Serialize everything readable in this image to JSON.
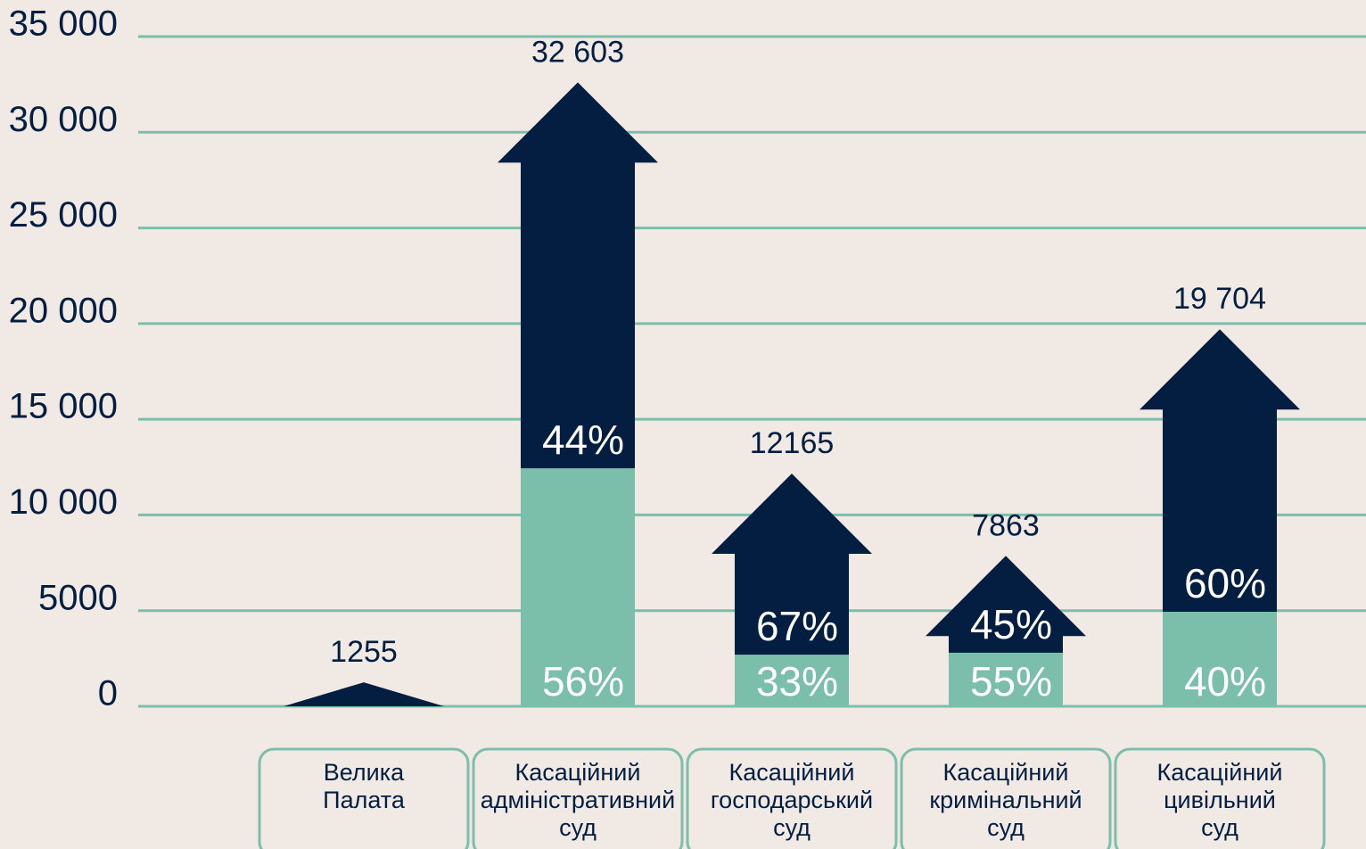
{
  "chart_data": {
    "type": "bar",
    "categories": [
      "Велика Палата",
      "Касаційний адміністративний суд",
      "Касаційний господарський суд",
      "Касаційний кримінальний суд",
      "Касаційний цивільний суд"
    ],
    "values": [
      1255,
      32603,
      12165,
      7863,
      19704
    ],
    "value_labels": [
      "1255",
      "32 603",
      "12165",
      "7863",
      "19 704"
    ],
    "color": "#041e42",
    "segments": {
      "color": "#7bbfab",
      "values": [
        0,
        12440,
        2700,
        2800,
        4940
      ]
    },
    "top_shares": {
      "values": [
        null,
        44,
        67,
        45,
        60
      ],
      "value_labels": [
        null,
        "44%",
        "67%",
        "45%",
        "60%"
      ]
    },
    "bottom_shares": {
      "values": [
        null,
        56,
        33,
        55,
        40
      ],
      "value_labels": [
        null,
        "56%",
        "33%",
        "55%",
        "40%"
      ]
    },
    "ylim": [
      0,
      35000
    ],
    "yticks": [
      0,
      5000,
      {
        "value": 10000,
        "label": "10 000"
      },
      {
        "value": 15000,
        "label": "15 000"
      },
      {
        "value": 20000,
        "label": "20 000"
      },
      {
        "value": 25000,
        "label": "25 000"
      },
      {
        "value": 30000,
        "label": "30 000"
      },
      {
        "value": 35000,
        "label": "35 000"
      }
    ],
    "grid": true
  }
}
